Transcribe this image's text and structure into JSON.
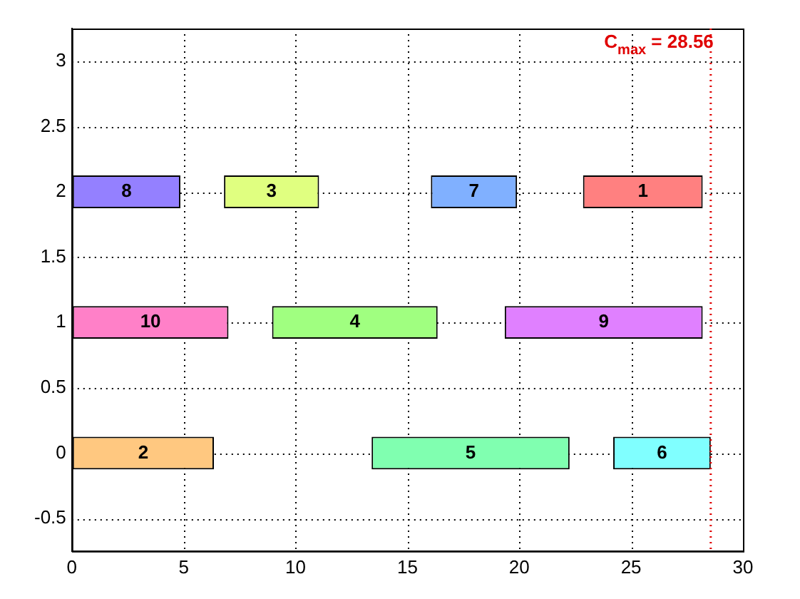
{
  "chart_data": {
    "type": "bar",
    "orientation": "horizontal",
    "series": [
      {
        "name": "8",
        "color": "#9480ff",
        "x": [
          2
        ],
        "base": [
          0
        ],
        "values": [
          4.85
        ]
      },
      {
        "name": "3",
        "color": "#e0ff80",
        "x": [
          2
        ],
        "base": [
          6.8
        ],
        "values": [
          4.25
        ]
      },
      {
        "name": "7",
        "color": "#80b0ff",
        "x": [
          2
        ],
        "base": [
          16.05
        ],
        "values": [
          3.85
        ]
      },
      {
        "name": "1",
        "color": "#ff8080",
        "x": [
          2
        ],
        "base": [
          22.85
        ],
        "values": [
          5.35
        ]
      },
      {
        "name": "10",
        "color": "#ff80c8",
        "x": [
          1
        ],
        "base": [
          0
        ],
        "values": [
          7.0
        ]
      },
      {
        "name": "4",
        "color": "#a0ff80",
        "x": [
          1
        ],
        "base": [
          8.95
        ],
        "values": [
          7.4
        ]
      },
      {
        "name": "9",
        "color": "#e080ff",
        "x": [
          1
        ],
        "base": [
          19.35
        ],
        "values": [
          8.85
        ]
      },
      {
        "name": "2",
        "color": "#ffc880",
        "x": [
          0
        ],
        "base": [
          0
        ],
        "values": [
          6.35
        ]
      },
      {
        "name": "5",
        "color": "#80ffb0",
        "x": [
          0
        ],
        "base": [
          13.4
        ],
        "values": [
          8.85
        ]
      },
      {
        "name": "6",
        "color": "#80ffff",
        "x": [
          0
        ],
        "base": [
          24.2
        ],
        "values": [
          4.36
        ]
      }
    ],
    "xlim": [
      0,
      30
    ],
    "xticks": [
      0,
      5,
      10,
      15,
      20,
      25,
      30
    ],
    "ylim": [
      -0.5,
      3
    ],
    "yticks": [
      -0.5,
      0,
      0.5,
      1,
      1.5,
      2,
      2.5,
      3
    ],
    "ref_lines": [
      {
        "axis": "x",
        "value": 28.56,
        "label": "C$_{max}$ = 28.56",
        "color": "#e00000",
        "line_style": "dotted"
      }
    ],
    "grid": true,
    "legend": false
  }
}
